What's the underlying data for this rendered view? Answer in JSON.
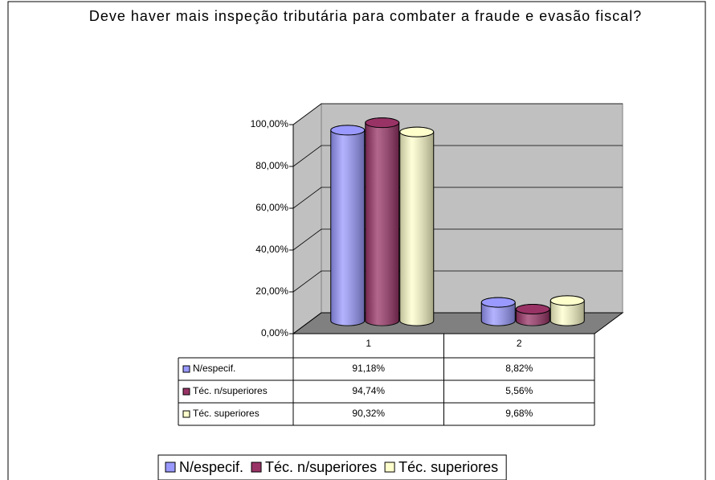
{
  "chart_data": {
    "type": "bar3d",
    "title": "Deve haver mais inspeção tributária para combater a fraude e evasão fiscal?",
    "categories": [
      "1",
      "2"
    ],
    "series": [
      {
        "name": "N/especif.",
        "color": "#9999ff",
        "values": [
          91.18,
          8.82
        ],
        "value_labels": [
          "91,18%",
          "8,82%"
        ]
      },
      {
        "name": "Téc. n/superiores",
        "color": "#993366",
        "values": [
          94.74,
          5.56
        ],
        "value_labels": [
          "94,74%",
          "5,56%"
        ]
      },
      {
        "name": "Téc. superiores",
        "color": "#ffffcc",
        "values": [
          90.32,
          9.68
        ],
        "value_labels": [
          "90,32%",
          "9,68%"
        ]
      }
    ],
    "ylim": [
      0,
      100
    ],
    "yticks": [
      {
        "value": 0,
        "label": "0,00%"
      },
      {
        "value": 20,
        "label": "20,00%"
      },
      {
        "value": 40,
        "label": "40,00%"
      },
      {
        "value": 60,
        "label": "60,00%"
      },
      {
        "value": 80,
        "label": "80,00%"
      },
      {
        "value": 100,
        "label": "100,00%"
      }
    ],
    "grid": true,
    "data_table": true,
    "legend": "bottom"
  }
}
